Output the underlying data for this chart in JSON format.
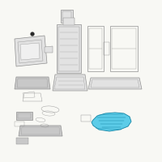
{
  "bg_color": "#f8f8f4",
  "outline_color": "#909090",
  "dark_outline": "#606060",
  "highlight_color": "#29b8d8",
  "highlight_dark": "#1a8aaa",
  "highlight_fill": "#5ccce8",
  "lw": 0.5
}
